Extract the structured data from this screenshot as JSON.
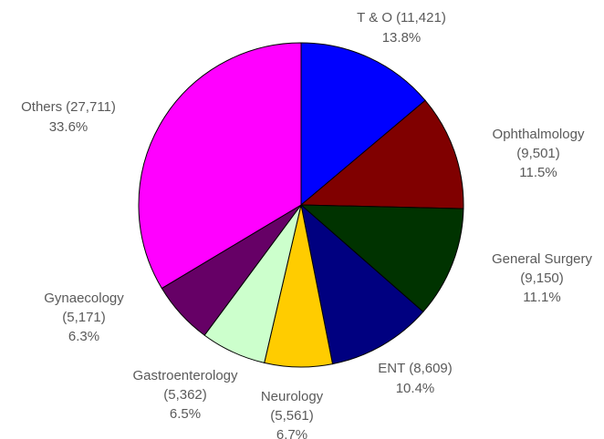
{
  "chart_data": {
    "type": "pie",
    "categories": [
      "T & O",
      "Ophthalmology",
      "General Surgery",
      "ENT",
      "Neurology",
      "Gastroenterology",
      "Gynaecology",
      "Others"
    ],
    "values": [
      11421,
      9501,
      9150,
      8609,
      5561,
      5362,
      5171,
      27711
    ],
    "value_labels": [
      "(11,421)",
      "(9,501)",
      "(9,150)",
      "(8,609)",
      "(5,561)",
      "(5,362)",
      "(5,171)",
      "(27,711)"
    ],
    "percent_labels": [
      "13.8%",
      "11.5%",
      "11.1%",
      "10.4%",
      "6.7%",
      "6.5%",
      "6.3%",
      "33.6%"
    ],
    "colors": [
      "#0000ff",
      "#800000",
      "#003300",
      "#000080",
      "#ffcc00",
      "#ccffcc",
      "#660066",
      "#ff00ff"
    ]
  }
}
